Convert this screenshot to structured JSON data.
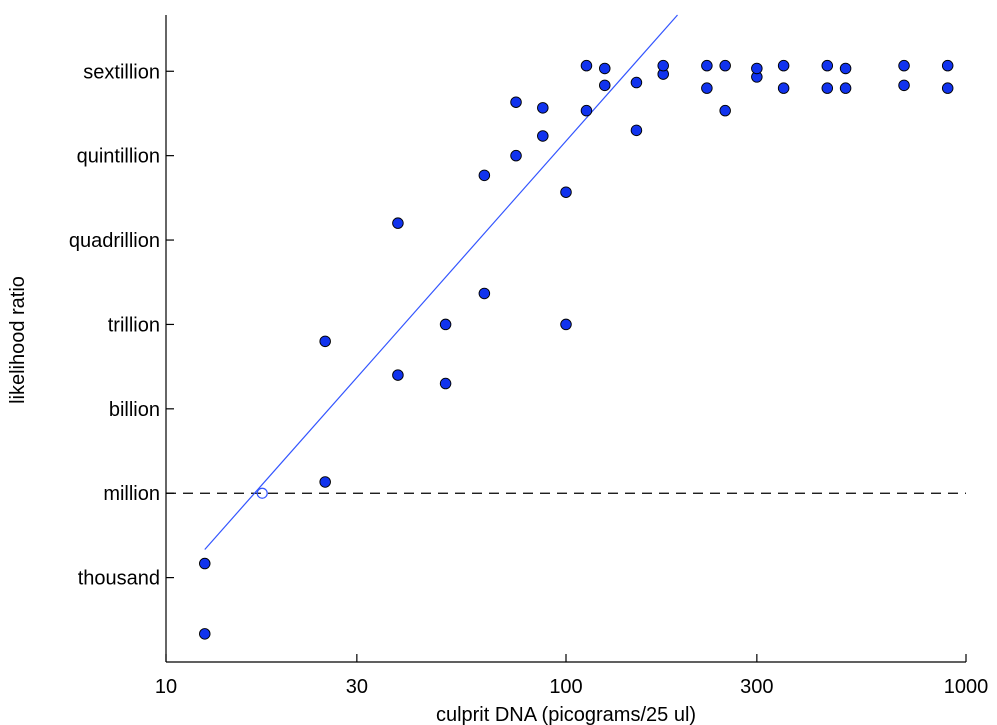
{
  "chart_data": {
    "type": "scatter",
    "title": "",
    "xlabel": "culprit DNA (picograms/25 ul)",
    "ylabel": "likelihood ratio",
    "x_scale": "log",
    "x_ticks": [
      10,
      30,
      100,
      300,
      1000
    ],
    "x_tick_labels": [
      "10",
      "30",
      "100",
      "300",
      "1000"
    ],
    "xlim": [
      10,
      1000
    ],
    "y_scale": "log10",
    "y_ticks": [
      3,
      6,
      9,
      12,
      15,
      18,
      21
    ],
    "y_tick_labels": [
      "thousand",
      "million",
      "billion",
      "trillion",
      "quadrillion",
      "quintillion",
      "sextillion"
    ],
    "ylim": [
      0,
      23
    ],
    "grid": false,
    "marker_color": "#1133ee",
    "marker_edge": "#000000",
    "points": [
      {
        "x": 12.5,
        "y": 1.0
      },
      {
        "x": 12.5,
        "y": 3.5
      },
      {
        "x": 25,
        "y": 6.4
      },
      {
        "x": 25,
        "y": 11.4
      },
      {
        "x": 38,
        "y": 10.2
      },
      {
        "x": 38,
        "y": 15.6
      },
      {
        "x": 50,
        "y": 12.0
      },
      {
        "x": 50,
        "y": 9.9
      },
      {
        "x": 62.5,
        "y": 13.1
      },
      {
        "x": 62.5,
        "y": 17.3
      },
      {
        "x": 75,
        "y": 18.0
      },
      {
        "x": 75,
        "y": 19.9
      },
      {
        "x": 87.5,
        "y": 18.7
      },
      {
        "x": 87.5,
        "y": 19.7
      },
      {
        "x": 100,
        "y": 12.0
      },
      {
        "x": 100,
        "y": 16.7
      },
      {
        "x": 112.5,
        "y": 19.6
      },
      {
        "x": 112.5,
        "y": 21.2
      },
      {
        "x": 125,
        "y": 20.5
      },
      {
        "x": 125,
        "y": 21.1
      },
      {
        "x": 150,
        "y": 18.9
      },
      {
        "x": 150,
        "y": 20.6
      },
      {
        "x": 175,
        "y": 20.9
      },
      {
        "x": 175,
        "y": 21.2
      },
      {
        "x": 225,
        "y": 20.4
      },
      {
        "x": 225,
        "y": 21.2
      },
      {
        "x": 250,
        "y": 19.6
      },
      {
        "x": 250,
        "y": 21.2
      },
      {
        "x": 300,
        "y": 20.8
      },
      {
        "x": 300,
        "y": 21.1
      },
      {
        "x": 350,
        "y": 20.4
      },
      {
        "x": 350,
        "y": 21.2
      },
      {
        "x": 450,
        "y": 20.4
      },
      {
        "x": 450,
        "y": 21.2
      },
      {
        "x": 500,
        "y": 20.4
      },
      {
        "x": 500,
        "y": 21.1
      },
      {
        "x": 700,
        "y": 20.5
      },
      {
        "x": 700,
        "y": 21.2
      },
      {
        "x": 900,
        "y": 20.4
      },
      {
        "x": 900,
        "y": 21.2
      }
    ],
    "trend_line": {
      "color": "#3355ff",
      "points": [
        {
          "x": 12.5,
          "y": 4.0
        },
        {
          "x": 190,
          "y": 23.0
        }
      ]
    },
    "open_marker": {
      "x": 17.4,
      "y": 6.0
    },
    "reference_line": {
      "y": 6,
      "style": "dashed",
      "color": "#000000"
    }
  }
}
